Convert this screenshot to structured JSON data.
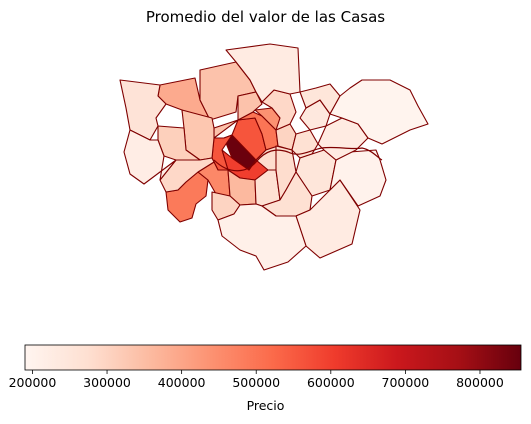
{
  "title": "Promedio del valor de las Casas",
  "colorbar": {
    "label": "Precio",
    "min": 190000,
    "max": 855000,
    "ticks": [
      200000,
      300000,
      400000,
      500000,
      600000,
      700000,
      800000
    ],
    "tick_labels": [
      "200000",
      "300000",
      "400000",
      "500000",
      "600000",
      "700000",
      "800000"
    ],
    "colormap": "Reds",
    "colors": [
      "#fff5f0",
      "#fee0d2",
      "#fcbba1",
      "#fc9272",
      "#fb6a4a",
      "#ef3b2c",
      "#cb181d",
      "#a50f15",
      "#67000d"
    ]
  },
  "map_style": {
    "edge_color": "#7f0000",
    "background": "#ffffff"
  },
  "chart_data": {
    "type": "choropleth",
    "title": "Promedio del valor de las Casas",
    "colorbar_label": "Precio",
    "value_range": [
      190000,
      855000
    ],
    "regions": [
      {
        "id": "r01",
        "value": 850000
      },
      {
        "id": "r02",
        "value": 600000
      },
      {
        "id": "r03",
        "value": 560000
      },
      {
        "id": "r04",
        "value": 500000
      },
      {
        "id": "r05",
        "value": 490000
      },
      {
        "id": "r06",
        "value": 460000
      },
      {
        "id": "r07",
        "value": 440000
      },
      {
        "id": "r08",
        "value": 390000
      },
      {
        "id": "r09",
        "value": 340000
      },
      {
        "id": "r10",
        "value": 360000
      },
      {
        "id": "r11",
        "value": 340000
      },
      {
        "id": "r12",
        "value": 330000
      },
      {
        "id": "r13",
        "value": 310000
      },
      {
        "id": "r14",
        "value": 300000
      },
      {
        "id": "r15",
        "value": 290000
      },
      {
        "id": "r16",
        "value": 300000
      },
      {
        "id": "r17",
        "value": 290000
      },
      {
        "id": "r18",
        "value": 280000
      },
      {
        "id": "r19",
        "value": 270000
      },
      {
        "id": "r20",
        "value": 280000
      },
      {
        "id": "r21",
        "value": 270000
      },
      {
        "id": "r22",
        "value": 260000
      },
      {
        "id": "r23",
        "value": 250000
      },
      {
        "id": "r24",
        "value": 240000
      },
      {
        "id": "r25",
        "value": 250000
      },
      {
        "id": "r26",
        "value": 270000
      },
      {
        "id": "r27",
        "value": 230000
      },
      {
        "id": "r28",
        "value": 220000
      },
      {
        "id": "r29",
        "value": 230000
      },
      {
        "id": "r30",
        "value": 210000
      },
      {
        "id": "r31",
        "value": 200000
      },
      {
        "id": "r32",
        "value": 230000
      },
      {
        "id": "r33",
        "value": 195000
      }
    ]
  }
}
